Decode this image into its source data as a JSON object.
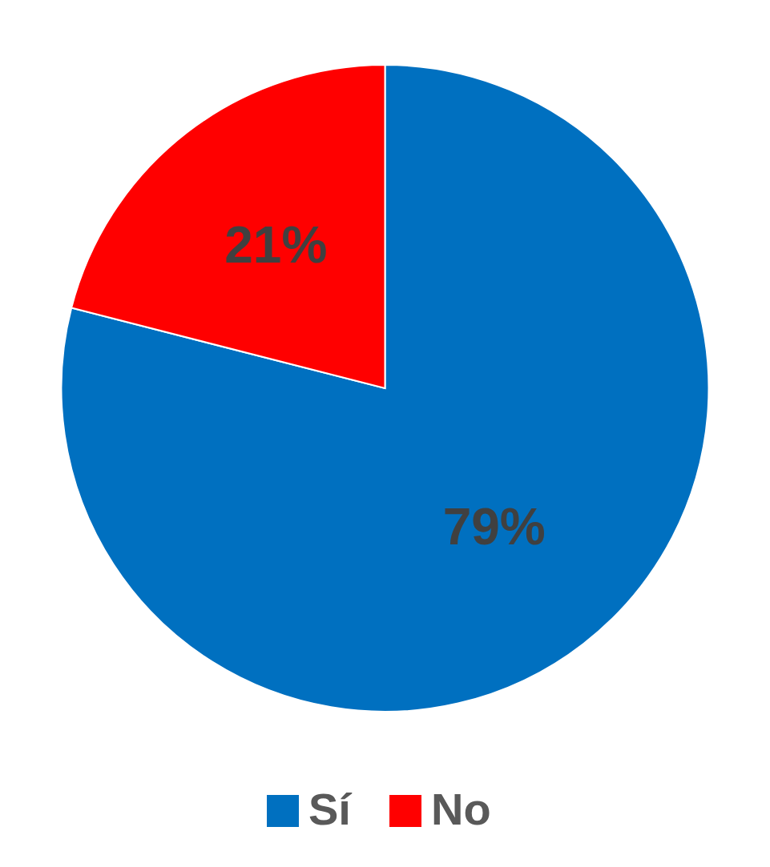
{
  "chart_data": {
    "type": "pie",
    "categories": [
      "Sí",
      "No"
    ],
    "values": [
      79,
      21
    ],
    "colors": [
      "#0070c0",
      "#ff0000"
    ],
    "value_labels": [
      "79%",
      "21%"
    ],
    "legend": "bottom"
  }
}
